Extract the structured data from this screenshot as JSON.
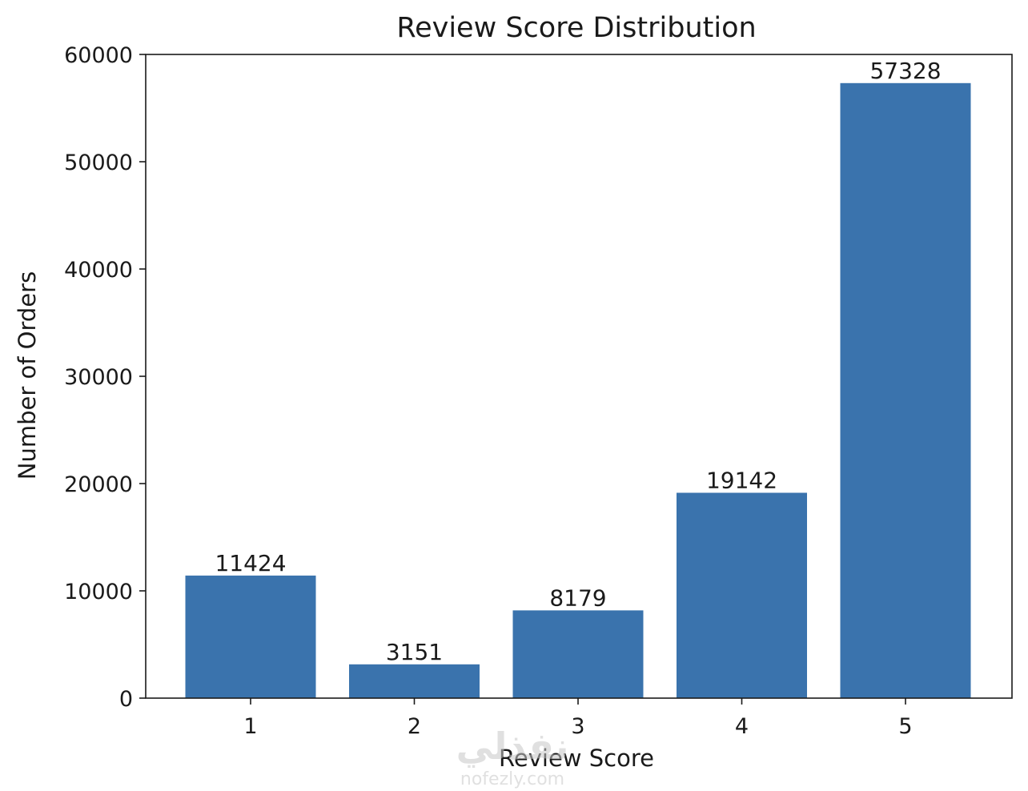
{
  "chart_data": {
    "type": "bar",
    "title": "Review Score Distribution",
    "xlabel": "Review Score",
    "ylabel": "Number of Orders",
    "categories": [
      "1",
      "2",
      "3",
      "4",
      "5"
    ],
    "values": [
      11424,
      3151,
      8179,
      19142,
      57328
    ],
    "data_labels": [
      "11424",
      "3151",
      "8179",
      "19142",
      "57328"
    ],
    "ylim": [
      0,
      60000
    ],
    "yticks": [
      0,
      10000,
      20000,
      30000,
      40000,
      50000,
      60000
    ],
    "ytick_labels": [
      "0",
      "10000",
      "20000",
      "30000",
      "40000",
      "50000",
      "60000"
    ],
    "grid": false,
    "bar_color": "#3a73ad"
  },
  "watermark": {
    "text": "نفذلي",
    "url": "nofezly.com"
  }
}
